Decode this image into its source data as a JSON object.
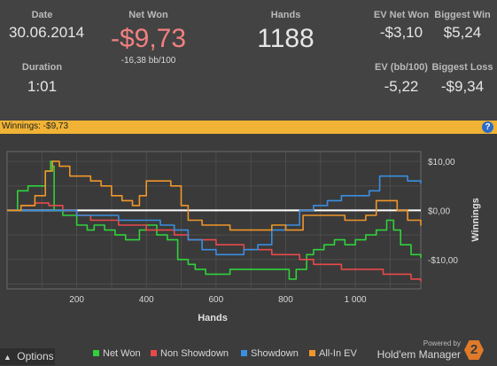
{
  "stats": {
    "date": {
      "label": "Date",
      "value": "30.06.2014"
    },
    "duration": {
      "label": "Duration",
      "value": "1:01"
    },
    "net_won": {
      "label": "Net Won",
      "value": "-$9,73",
      "sub": "-16,38 bb/100"
    },
    "hands": {
      "label": "Hands",
      "value": "1188"
    },
    "ev_net_won": {
      "label": "EV Net Won",
      "value": "-$3,10"
    },
    "ev_bb": {
      "label": "EV (bb/100)",
      "value": "-5,22"
    },
    "biggest_win": {
      "label": "Biggest Win",
      "value": "$5,24"
    },
    "biggest_loss": {
      "label": "Biggest Loss",
      "value": "-$9,34"
    }
  },
  "winnings_bar": {
    "text": "Winnings: -$9,73",
    "help_icon": "question-icon"
  },
  "chart_data": {
    "type": "line",
    "xlabel": "Hands",
    "ylabel": "Winnings",
    "x_ticks": [
      "200",
      "400",
      "600",
      "800",
      "1 000"
    ],
    "y_ticks": [
      "$10,00",
      "$0,00",
      "-$10,00"
    ],
    "xlim": [
      0,
      1188
    ],
    "ylim": [
      -16,
      12
    ],
    "grid": true,
    "legend": "bottom",
    "series": [
      {
        "name": "Net Won",
        "color": "#2fd23b",
        "points": [
          [
            0,
            0
          ],
          [
            30,
            4
          ],
          [
            60,
            5
          ],
          [
            90,
            5
          ],
          [
            110,
            8
          ],
          [
            125,
            10
          ],
          [
            130,
            9
          ],
          [
            135,
            0
          ],
          [
            160,
            -1
          ],
          [
            200,
            -3
          ],
          [
            230,
            -4
          ],
          [
            250,
            -3
          ],
          [
            280,
            -4
          ],
          [
            310,
            -5
          ],
          [
            340,
            -6
          ],
          [
            380,
            -4
          ],
          [
            400,
            -3
          ],
          [
            430,
            -5
          ],
          [
            460,
            -6
          ],
          [
            490,
            -10
          ],
          [
            520,
            -11
          ],
          [
            540,
            -12
          ],
          [
            570,
            -13
          ],
          [
            600,
            -13
          ],
          [
            640,
            -12
          ],
          [
            680,
            -12
          ],
          [
            720,
            -12
          ],
          [
            760,
            -12
          ],
          [
            790,
            -12
          ],
          [
            810,
            -14
          ],
          [
            830,
            -12
          ],
          [
            860,
            -9
          ],
          [
            880,
            -8
          ],
          [
            910,
            -7
          ],
          [
            940,
            -6
          ],
          [
            970,
            -7
          ],
          [
            1000,
            -6
          ],
          [
            1030,
            -5
          ],
          [
            1060,
            -4
          ],
          [
            1090,
            -2
          ],
          [
            1110,
            -4
          ],
          [
            1130,
            -7
          ],
          [
            1160,
            -9
          ],
          [
            1188,
            -9.7
          ]
        ]
      },
      {
        "name": "Non Showdown",
        "color": "#e84a4a",
        "points": [
          [
            0,
            0
          ],
          [
            40,
            1
          ],
          [
            80,
            1.5
          ],
          [
            120,
            1
          ],
          [
            160,
            0
          ],
          [
            200,
            -1
          ],
          [
            240,
            -2
          ],
          [
            280,
            -2
          ],
          [
            320,
            -3
          ],
          [
            360,
            -3
          ],
          [
            400,
            -4
          ],
          [
            440,
            -4
          ],
          [
            480,
            -5
          ],
          [
            520,
            -6
          ],
          [
            560,
            -6
          ],
          [
            600,
            -7
          ],
          [
            640,
            -7
          ],
          [
            680,
            -8
          ],
          [
            720,
            -8
          ],
          [
            760,
            -9
          ],
          [
            800,
            -9
          ],
          [
            840,
            -10
          ],
          [
            880,
            -11
          ],
          [
            920,
            -11
          ],
          [
            960,
            -12
          ],
          [
            1000,
            -12
          ],
          [
            1040,
            -12
          ],
          [
            1080,
            -13
          ],
          [
            1120,
            -13
          ],
          [
            1160,
            -14
          ],
          [
            1188,
            -14.5
          ]
        ]
      },
      {
        "name": "Showdown",
        "color": "#3a8ee0",
        "points": [
          [
            0,
            0
          ],
          [
            40,
            0
          ],
          [
            80,
            0
          ],
          [
            120,
            0
          ],
          [
            160,
            0
          ],
          [
            200,
            -1
          ],
          [
            240,
            -1
          ],
          [
            280,
            -1
          ],
          [
            320,
            -2
          ],
          [
            360,
            -2
          ],
          [
            400,
            -2
          ],
          [
            440,
            -3
          ],
          [
            480,
            -4
          ],
          [
            520,
            -6
          ],
          [
            560,
            -8
          ],
          [
            600,
            -9
          ],
          [
            640,
            -9
          ],
          [
            680,
            -8
          ],
          [
            720,
            -7
          ],
          [
            760,
            -4
          ],
          [
            800,
            -3
          ],
          [
            840,
            0
          ],
          [
            880,
            1
          ],
          [
            920,
            2
          ],
          [
            960,
            3
          ],
          [
            1000,
            3
          ],
          [
            1040,
            4
          ],
          [
            1070,
            7
          ],
          [
            1110,
            7
          ],
          [
            1150,
            6
          ],
          [
            1188,
            5.5
          ]
        ]
      },
      {
        "name": "All-In EV",
        "color": "#f0962a",
        "points": [
          [
            0,
            0
          ],
          [
            40,
            1
          ],
          [
            80,
            3
          ],
          [
            110,
            8
          ],
          [
            130,
            10
          ],
          [
            150,
            9
          ],
          [
            180,
            7
          ],
          [
            210,
            7
          ],
          [
            240,
            6
          ],
          [
            270,
            5
          ],
          [
            300,
            3
          ],
          [
            330,
            2
          ],
          [
            360,
            1
          ],
          [
            380,
            3
          ],
          [
            400,
            6
          ],
          [
            440,
            6
          ],
          [
            470,
            5
          ],
          [
            500,
            1
          ],
          [
            520,
            -2
          ],
          [
            560,
            -3
          ],
          [
            600,
            -3
          ],
          [
            640,
            -4
          ],
          [
            680,
            -4
          ],
          [
            720,
            -4
          ],
          [
            760,
            -3
          ],
          [
            800,
            -4
          ],
          [
            830,
            -4
          ],
          [
            850,
            -1
          ],
          [
            880,
            -1
          ],
          [
            900,
            -1
          ],
          [
            940,
            -1
          ],
          [
            970,
            -2
          ],
          [
            1000,
            -2
          ],
          [
            1030,
            -1
          ],
          [
            1060,
            2
          ],
          [
            1090,
            2
          ],
          [
            1120,
            0
          ],
          [
            1150,
            -2
          ],
          [
            1188,
            -3.1
          ]
        ]
      }
    ]
  },
  "legend_items": [
    {
      "label": "Net Won",
      "color": "#2fd23b"
    },
    {
      "label": "Non Showdown",
      "color": "#e84a4a"
    },
    {
      "label": "Showdown",
      "color": "#3a8ee0"
    },
    {
      "label": "All-In EV",
      "color": "#f0962a"
    }
  ],
  "options_button": {
    "label": "Options",
    "icon": "chevron-up-icon"
  },
  "branding": {
    "powered_by": "Powered by",
    "name": "Hold'em Manager",
    "badge": "2"
  }
}
